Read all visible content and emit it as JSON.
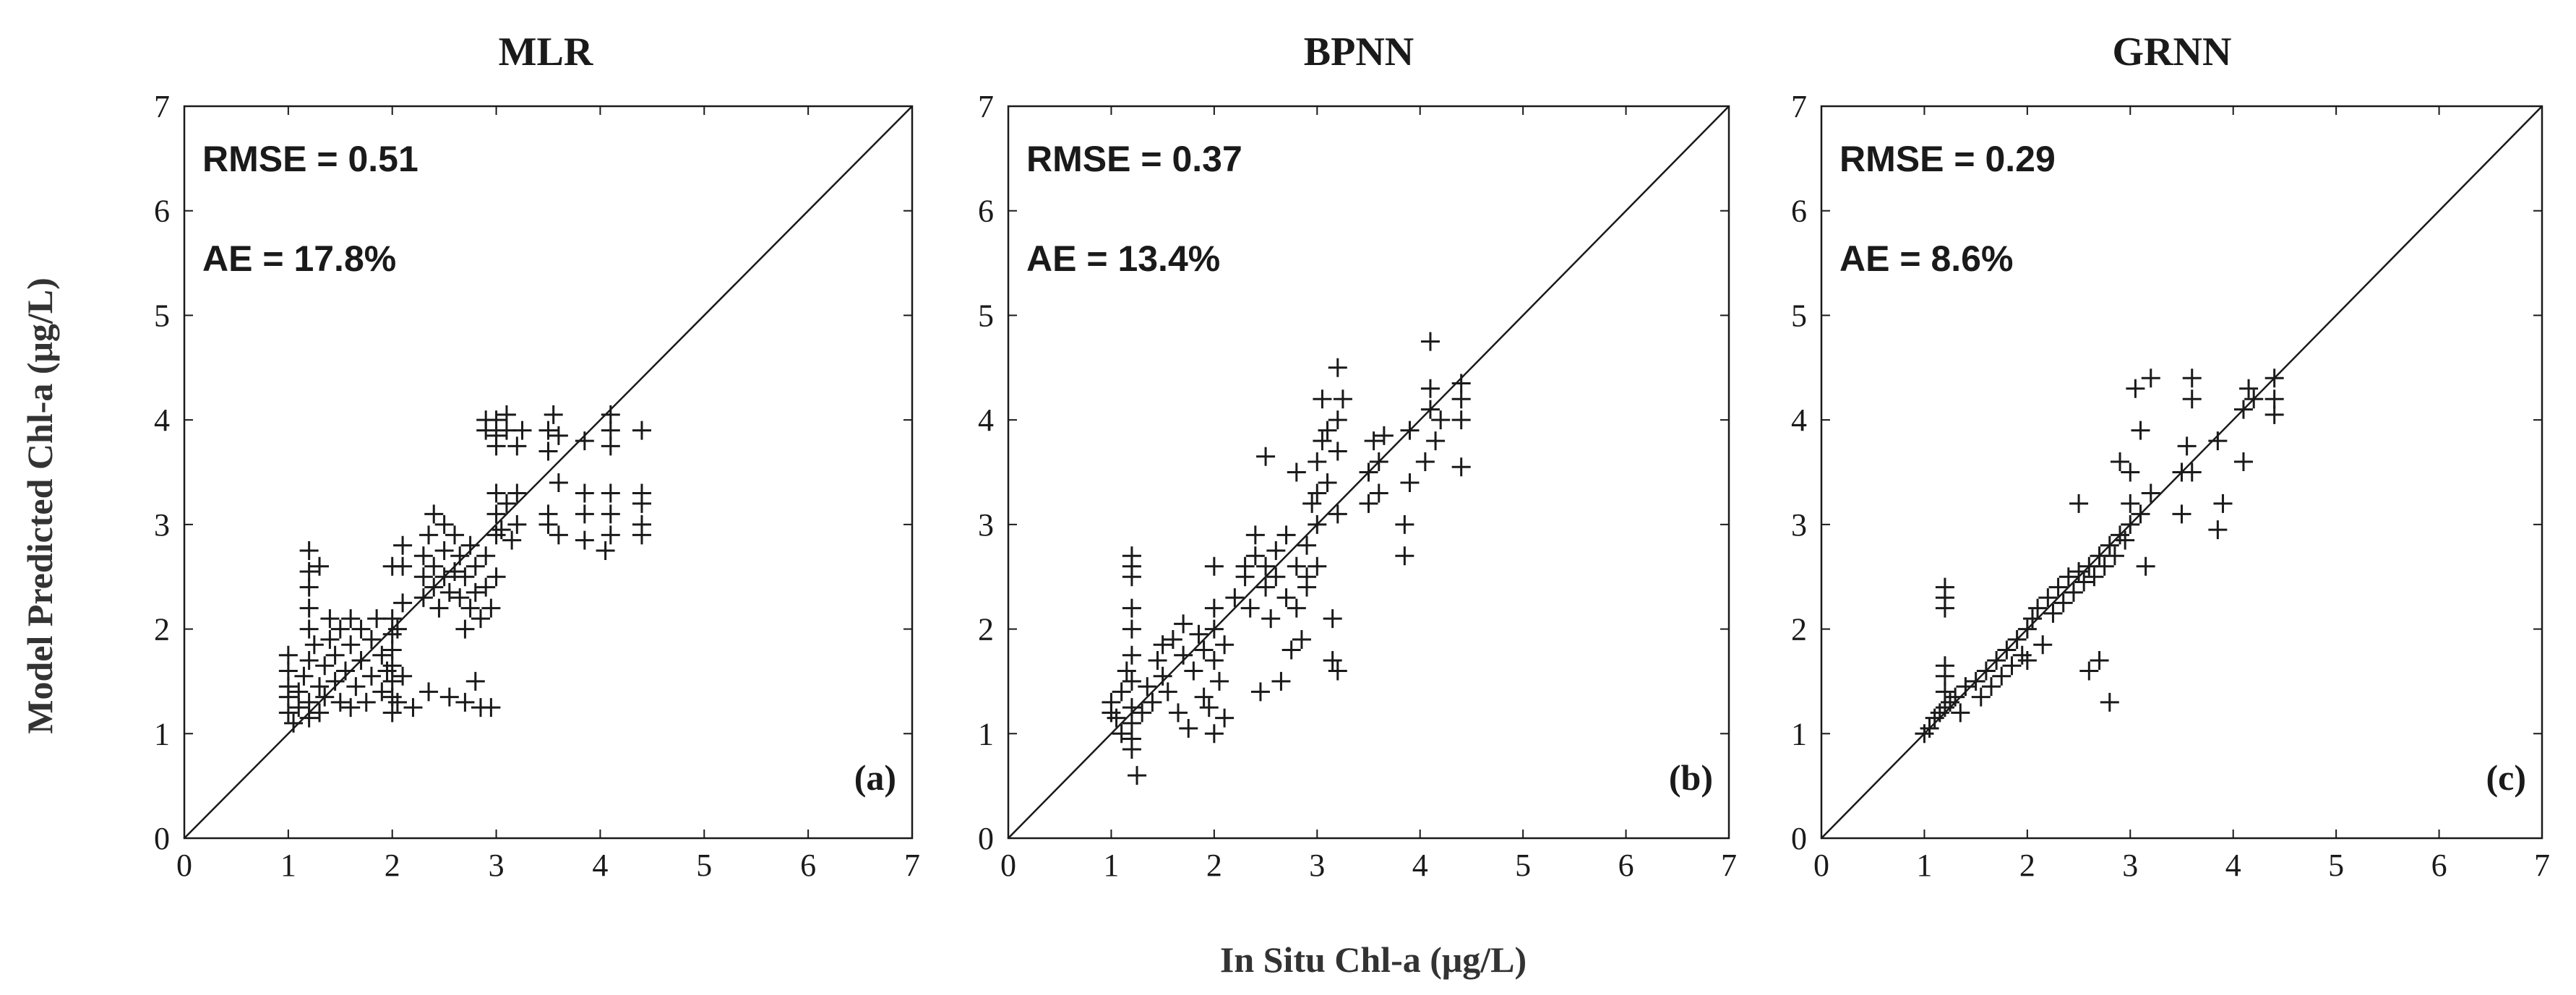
{
  "figure": {
    "xlabel": "In Situ Chl-a (μg/L)",
    "ylabel": "Model Predicted Chl-a (μg/L)"
  },
  "chart_data": [
    {
      "type": "scatter",
      "title": "MLR",
      "panel_label": "(a)",
      "stats": [
        "RMSE = 0.51",
        "AE = 17.8%"
      ],
      "xlim": [
        0,
        7
      ],
      "ylim": [
        0,
        7
      ],
      "xticks": [
        "0",
        "1",
        "2",
        "3",
        "4",
        "5",
        "6",
        "7"
      ],
      "yticks": [
        "0",
        "1",
        "2",
        "3",
        "4",
        "5",
        "6",
        "7"
      ],
      "reference_line": "1:1",
      "marker": "+",
      "points": [
        [
          1.0,
          1.2
        ],
        [
          1.0,
          1.35
        ],
        [
          1.0,
          1.45
        ],
        [
          1.0,
          1.6
        ],
        [
          1.0,
          1.75
        ],
        [
          1.05,
          1.1
        ],
        [
          1.1,
          1.25
        ],
        [
          1.1,
          1.4
        ],
        [
          1.15,
          1.55
        ],
        [
          1.2,
          1.15
        ],
        [
          1.2,
          1.3
        ],
        [
          1.2,
          1.7
        ],
        [
          1.2,
          2.0
        ],
        [
          1.2,
          2.2
        ],
        [
          1.2,
          2.4
        ],
        [
          1.2,
          2.55
        ],
        [
          1.2,
          2.75
        ],
        [
          1.25,
          1.85
        ],
        [
          1.3,
          1.2
        ],
        [
          1.3,
          1.45
        ],
        [
          1.3,
          2.6
        ],
        [
          1.35,
          1.35
        ],
        [
          1.35,
          1.65
        ],
        [
          1.4,
          1.9
        ],
        [
          1.4,
          2.1
        ],
        [
          1.45,
          1.5
        ],
        [
          1.45,
          1.75
        ],
        [
          1.5,
          1.3
        ],
        [
          1.5,
          2.0
        ],
        [
          1.55,
          1.6
        ],
        [
          1.6,
          1.25
        ],
        [
          1.6,
          1.85
        ],
        [
          1.6,
          2.1
        ],
        [
          1.65,
          1.45
        ],
        [
          1.7,
          1.7
        ],
        [
          1.7,
          2.0
        ],
        [
          1.75,
          1.3
        ],
        [
          1.8,
          1.55
        ],
        [
          1.8,
          1.9
        ],
        [
          1.85,
          2.1
        ],
        [
          1.9,
          1.4
        ],
        [
          1.9,
          1.75
        ],
        [
          1.95,
          1.6
        ],
        [
          2.0,
          1.2
        ],
        [
          2.0,
          1.35
        ],
        [
          2.0,
          1.5
        ],
        [
          2.0,
          1.65
        ],
        [
          2.0,
          1.8
        ],
        [
          2.0,
          1.95
        ],
        [
          2.0,
          2.1
        ],
        [
          2.0,
          2.6
        ],
        [
          2.05,
          1.3
        ],
        [
          2.05,
          2.0
        ],
        [
          2.1,
          1.55
        ],
        [
          2.1,
          2.25
        ],
        [
          2.1,
          2.6
        ],
        [
          2.1,
          2.8
        ],
        [
          2.2,
          1.25
        ],
        [
          2.3,
          2.3
        ],
        [
          2.3,
          2.5
        ],
        [
          2.3,
          2.7
        ],
        [
          2.35,
          1.4
        ],
        [
          2.35,
          2.9
        ],
        [
          2.4,
          2.4
        ],
        [
          2.4,
          2.6
        ],
        [
          2.4,
          3.1
        ],
        [
          2.45,
          2.2
        ],
        [
          2.5,
          2.5
        ],
        [
          2.5,
          2.75
        ],
        [
          2.5,
          3.0
        ],
        [
          2.55,
          1.35
        ],
        [
          2.55,
          2.35
        ],
        [
          2.6,
          2.55
        ],
        [
          2.6,
          2.9
        ],
        [
          2.65,
          2.3
        ],
        [
          2.65,
          2.7
        ],
        [
          2.7,
          2.0
        ],
        [
          2.7,
          2.5
        ],
        [
          2.7,
          1.3
        ],
        [
          2.75,
          2.2
        ],
        [
          2.75,
          2.8
        ],
        [
          2.8,
          1.5
        ],
        [
          2.8,
          2.35
        ],
        [
          2.8,
          2.6
        ],
        [
          2.85,
          2.1
        ],
        [
          2.85,
          1.25
        ],
        [
          2.9,
          2.4
        ],
        [
          2.9,
          2.7
        ],
        [
          2.9,
          3.9
        ],
        [
          2.9,
          4.0
        ],
        [
          2.95,
          2.2
        ],
        [
          2.95,
          1.25
        ],
        [
          3.0,
          2.5
        ],
        [
          3.0,
          2.9
        ],
        [
          3.0,
          3.1
        ],
        [
          3.0,
          3.3
        ],
        [
          3.0,
          3.75
        ],
        [
          3.0,
          3.85
        ],
        [
          3.0,
          4.0
        ],
        [
          3.05,
          2.95
        ],
        [
          3.1,
          3.2
        ],
        [
          3.1,
          3.9
        ],
        [
          3.1,
          4.05
        ],
        [
          3.15,
          2.85
        ],
        [
          3.2,
          3.0
        ],
        [
          3.2,
          3.3
        ],
        [
          3.2,
          3.75
        ],
        [
          3.25,
          3.9
        ],
        [
          3.5,
          3.0
        ],
        [
          3.5,
          3.1
        ],
        [
          3.5,
          3.7
        ],
        [
          3.5,
          3.9
        ],
        [
          3.55,
          4.05
        ],
        [
          3.6,
          3.4
        ],
        [
          3.6,
          3.85
        ],
        [
          3.6,
          2.9
        ],
        [
          3.85,
          2.85
        ],
        [
          3.85,
          3.1
        ],
        [
          3.85,
          3.3
        ],
        [
          3.85,
          3.8
        ],
        [
          4.05,
          2.75
        ],
        [
          4.1,
          2.9
        ],
        [
          4.1,
          3.1
        ],
        [
          4.1,
          3.3
        ],
        [
          4.1,
          3.75
        ],
        [
          4.1,
          3.9
        ],
        [
          4.1,
          4.05
        ],
        [
          4.4,
          2.9
        ],
        [
          4.4,
          3.0
        ],
        [
          4.4,
          3.2
        ],
        [
          4.4,
          3.3
        ],
        [
          4.4,
          3.9
        ]
      ]
    },
    {
      "type": "scatter",
      "title": "BPNN",
      "panel_label": "(b)",
      "stats": [
        "RMSE = 0.37",
        "AE = 13.4%"
      ],
      "xlim": [
        0,
        7
      ],
      "ylim": [
        0,
        7
      ],
      "xticks": [
        "0",
        "1",
        "2",
        "3",
        "4",
        "5",
        "6",
        "7"
      ],
      "yticks": [
        "0",
        "1",
        "2",
        "3",
        "4",
        "5",
        "6",
        "7"
      ],
      "reference_line": "1:1",
      "marker": "+",
      "points": [
        [
          1.0,
          1.2
        ],
        [
          1.0,
          1.3
        ],
        [
          1.05,
          1.15
        ],
        [
          1.1,
          1.0
        ],
        [
          1.1,
          1.4
        ],
        [
          1.15,
          1.6
        ],
        [
          1.2,
          0.85
        ],
        [
          1.2,
          0.95
        ],
        [
          1.2,
          1.1
        ],
        [
          1.2,
          1.25
        ],
        [
          1.2,
          1.5
        ],
        [
          1.2,
          1.75
        ],
        [
          1.2,
          2.0
        ],
        [
          1.2,
          2.2
        ],
        [
          1.2,
          2.5
        ],
        [
          1.2,
          2.6
        ],
        [
          1.2,
          2.7
        ],
        [
          1.25,
          0.6
        ],
        [
          1.3,
          1.2
        ],
        [
          1.35,
          1.45
        ],
        [
          1.4,
          1.3
        ],
        [
          1.45,
          1.7
        ],
        [
          1.5,
          1.55
        ],
        [
          1.5,
          1.85
        ],
        [
          1.55,
          1.4
        ],
        [
          1.6,
          1.9
        ],
        [
          1.65,
          1.2
        ],
        [
          1.7,
          1.75
        ],
        [
          1.7,
          2.05
        ],
        [
          1.75,
          1.05
        ],
        [
          1.8,
          1.6
        ],
        [
          1.85,
          1.95
        ],
        [
          1.9,
          1.35
        ],
        [
          1.9,
          1.8
        ],
        [
          1.95,
          1.25
        ],
        [
          2.0,
          1.7
        ],
        [
          2.0,
          1.0
        ],
        [
          2.0,
          2.0
        ],
        [
          2.0,
          2.2
        ],
        [
          2.0,
          2.6
        ],
        [
          2.05,
          1.5
        ],
        [
          2.1,
          1.15
        ],
        [
          2.1,
          1.85
        ],
        [
          2.2,
          2.3
        ],
        [
          2.3,
          2.5
        ],
        [
          2.3,
          2.6
        ],
        [
          2.35,
          2.2
        ],
        [
          2.4,
          2.7
        ],
        [
          2.4,
          2.9
        ],
        [
          2.45,
          1.4
        ],
        [
          2.5,
          2.4
        ],
        [
          2.5,
          2.6
        ],
        [
          2.5,
          3.65
        ],
        [
          2.55,
          2.1
        ],
        [
          2.6,
          2.5
        ],
        [
          2.6,
          2.75
        ],
        [
          2.65,
          1.5
        ],
        [
          2.7,
          2.3
        ],
        [
          2.7,
          2.9
        ],
        [
          2.75,
          1.8
        ],
        [
          2.8,
          2.2
        ],
        [
          2.8,
          2.6
        ],
        [
          2.8,
          3.5
        ],
        [
          2.85,
          1.9
        ],
        [
          2.9,
          2.4
        ],
        [
          2.9,
          2.5
        ],
        [
          2.9,
          2.8
        ],
        [
          2.95,
          3.2
        ],
        [
          3.0,
          2.6
        ],
        [
          3.0,
          3.0
        ],
        [
          3.0,
          3.3
        ],
        [
          3.0,
          3.6
        ],
        [
          3.05,
          3.8
        ],
        [
          3.05,
          4.2
        ],
        [
          3.1,
          3.4
        ],
        [
          3.1,
          3.9
        ],
        [
          3.15,
          2.1
        ],
        [
          3.15,
          1.7
        ],
        [
          3.2,
          3.1
        ],
        [
          3.2,
          3.7
        ],
        [
          3.2,
          4.0
        ],
        [
          3.2,
          4.5
        ],
        [
          3.2,
          1.6
        ],
        [
          3.25,
          4.2
        ],
        [
          3.5,
          3.2
        ],
        [
          3.5,
          3.5
        ],
        [
          3.55,
          3.8
        ],
        [
          3.6,
          3.3
        ],
        [
          3.6,
          3.6
        ],
        [
          3.65,
          3.85
        ],
        [
          3.85,
          2.7
        ],
        [
          3.85,
          3.0
        ],
        [
          3.9,
          3.4
        ],
        [
          3.9,
          3.9
        ],
        [
          4.05,
          3.6
        ],
        [
          4.1,
          4.1
        ],
        [
          4.1,
          4.3
        ],
        [
          4.1,
          4.75
        ],
        [
          4.15,
          3.8
        ],
        [
          4.2,
          4.0
        ],
        [
          4.4,
          3.55
        ],
        [
          4.4,
          4.0
        ],
        [
          4.4,
          4.2
        ],
        [
          4.4,
          4.35
        ]
      ]
    },
    {
      "type": "scatter",
      "title": "GRNN",
      "panel_label": "(c)",
      "stats": [
        "RMSE = 0.29",
        "AE = 8.6%"
      ],
      "xlim": [
        0,
        7
      ],
      "ylim": [
        0,
        7
      ],
      "xticks": [
        "0",
        "1",
        "2",
        "3",
        "4",
        "5",
        "6",
        "7"
      ],
      "yticks": [
        "0",
        "1",
        "2",
        "3",
        "4",
        "5",
        "6",
        "7"
      ],
      "reference_line": "1:1",
      "marker": "+",
      "points": [
        [
          1.0,
          1.0
        ],
        [
          1.05,
          1.05
        ],
        [
          1.1,
          1.15
        ],
        [
          1.15,
          1.2
        ],
        [
          1.2,
          1.25
        ],
        [
          1.2,
          1.4
        ],
        [
          1.2,
          1.55
        ],
        [
          1.2,
          1.65
        ],
        [
          1.2,
          2.2
        ],
        [
          1.2,
          2.3
        ],
        [
          1.2,
          2.4
        ],
        [
          1.25,
          1.3
        ],
        [
          1.3,
          1.35
        ],
        [
          1.35,
          1.2
        ],
        [
          1.4,
          1.45
        ],
        [
          1.5,
          1.5
        ],
        [
          1.55,
          1.35
        ],
        [
          1.6,
          1.6
        ],
        [
          1.65,
          1.45
        ],
        [
          1.7,
          1.7
        ],
        [
          1.75,
          1.55
        ],
        [
          1.8,
          1.8
        ],
        [
          1.85,
          1.65
        ],
        [
          1.9,
          1.9
        ],
        [
          1.95,
          1.75
        ],
        [
          2.0,
          2.0
        ],
        [
          2.0,
          1.7
        ],
        [
          2.05,
          2.1
        ],
        [
          2.1,
          2.2
        ],
        [
          2.15,
          1.85
        ],
        [
          2.2,
          2.3
        ],
        [
          2.25,
          2.15
        ],
        [
          2.3,
          2.4
        ],
        [
          2.35,
          2.25
        ],
        [
          2.4,
          2.5
        ],
        [
          2.45,
          2.35
        ],
        [
          2.5,
          2.55
        ],
        [
          2.5,
          3.2
        ],
        [
          2.55,
          2.45
        ],
        [
          2.6,
          2.6
        ],
        [
          2.6,
          1.6
        ],
        [
          2.65,
          2.5
        ],
        [
          2.7,
          2.7
        ],
        [
          2.7,
          1.7
        ],
        [
          2.75,
          2.6
        ],
        [
          2.8,
          2.8
        ],
        [
          2.8,
          1.3
        ],
        [
          2.85,
          2.7
        ],
        [
          2.9,
          2.9
        ],
        [
          2.9,
          3.6
        ],
        [
          2.95,
          2.85
        ],
        [
          3.0,
          3.0
        ],
        [
          3.0,
          3.2
        ],
        [
          3.0,
          3.5
        ],
        [
          3.05,
          4.3
        ],
        [
          3.1,
          3.1
        ],
        [
          3.1,
          3.9
        ],
        [
          3.15,
          2.6
        ],
        [
          3.2,
          4.4
        ],
        [
          3.2,
          3.3
        ],
        [
          3.5,
          3.5
        ],
        [
          3.5,
          3.1
        ],
        [
          3.55,
          3.75
        ],
        [
          3.6,
          3.5
        ],
        [
          3.6,
          4.2
        ],
        [
          3.6,
          4.4
        ],
        [
          3.85,
          3.8
        ],
        [
          3.85,
          2.95
        ],
        [
          3.9,
          3.2
        ],
        [
          4.1,
          4.1
        ],
        [
          4.1,
          3.6
        ],
        [
          4.15,
          4.3
        ],
        [
          4.2,
          4.2
        ],
        [
          4.4,
          4.05
        ],
        [
          4.4,
          4.2
        ],
        [
          4.4,
          4.4
        ]
      ]
    }
  ]
}
